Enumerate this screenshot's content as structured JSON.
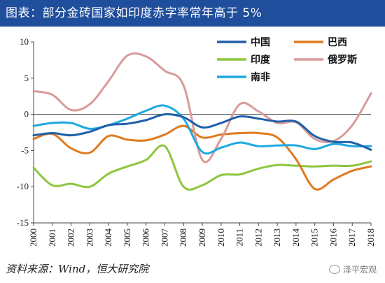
{
  "title": "图表：部分金砖国家如印度赤字率常年高于 5%",
  "source": "资料来源：Wind，恒大研究院",
  "watermark": "泽平宏观",
  "watermark_icon": "wechat-icon",
  "chart_data": {
    "type": "line",
    "x": [
      2000,
      2001,
      2002,
      2003,
      2004,
      2005,
      2006,
      2007,
      2008,
      2009,
      2010,
      2011,
      2012,
      2013,
      2014,
      2015,
      2016,
      2017,
      2018
    ],
    "ylim": [
      -15,
      10
    ],
    "yticks": [
      10,
      5,
      0,
      -5,
      -10,
      -15
    ],
    "grid": false,
    "zero_line": true,
    "legend_position": "top-right",
    "series": [
      {
        "name": "中国",
        "color": "#1f5fa8",
        "values": [
          -2.9,
          -2.6,
          -2.9,
          -2.4,
          -1.5,
          -1.3,
          -0.8,
          0.0,
          -0.4,
          -1.8,
          -1.2,
          -0.3,
          -0.6,
          -1.0,
          -1.0,
          -3.0,
          -3.8,
          -3.9,
          -4.9
        ]
      },
      {
        "name": "巴西",
        "color": "#e07a1e",
        "values": [
          -3.4,
          -2.7,
          -4.7,
          -5.3,
          -3.0,
          -3.5,
          -3.6,
          -2.8,
          -1.6,
          -3.2,
          -2.8,
          -2.6,
          -2.6,
          -3.2,
          -6.2,
          -10.3,
          -9.0,
          -7.8,
          -7.2
        ]
      },
      {
        "name": "印度",
        "color": "#8dc63f",
        "values": [
          -7.4,
          -9.8,
          -9.6,
          -10.0,
          -8.2,
          -7.2,
          -6.3,
          -4.4,
          -10.0,
          -9.8,
          -8.4,
          -8.3,
          -7.5,
          -7.0,
          -7.1,
          -7.2,
          -7.1,
          -7.1,
          -6.5
        ]
      },
      {
        "name": "俄罗斯",
        "color": "#d99a9a",
        "values": [
          3.2,
          2.7,
          0.6,
          1.4,
          4.6,
          8.1,
          8.0,
          6.0,
          4.0,
          -6.3,
          -3.4,
          1.4,
          0.4,
          -1.2,
          -1.1,
          -3.4,
          -3.7,
          -1.5,
          2.9
        ]
      },
      {
        "name": "南非",
        "color": "#1fa9e1",
        "values": [
          -1.6,
          -1.2,
          -1.2,
          -2.0,
          -1.5,
          -0.6,
          0.5,
          1.2,
          -0.6,
          -5.2,
          -4.6,
          -3.9,
          -4.4,
          -4.3,
          -4.3,
          -4.8,
          -4.1,
          -4.4,
          -4.4
        ]
      }
    ]
  }
}
